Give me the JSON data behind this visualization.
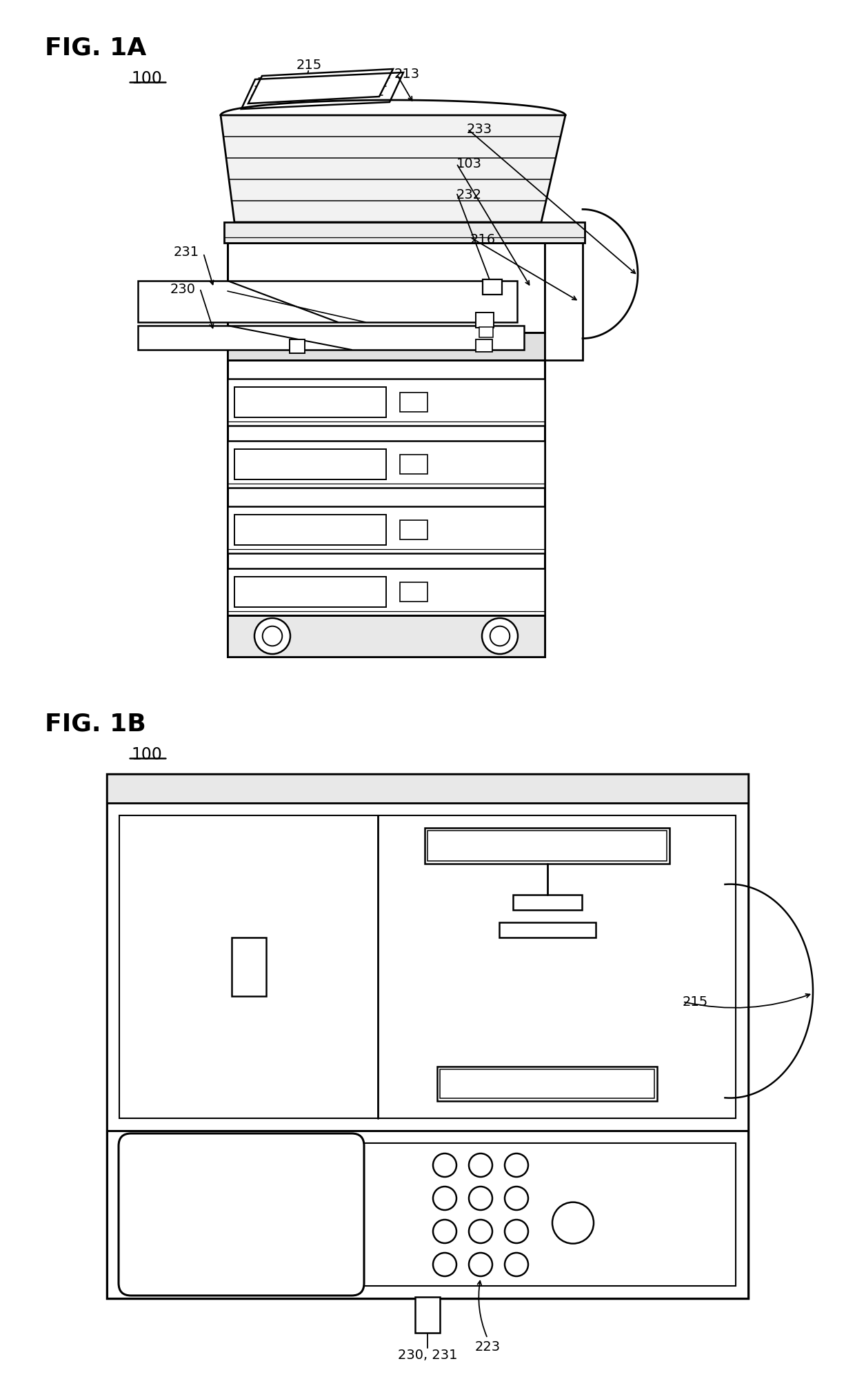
{
  "fig_title_1a": "FIG. 1A",
  "fig_title_1b": "FIG. 1B",
  "label_100": "100",
  "bg_color": "#ffffff",
  "line_color": "#000000",
  "fontsize_title": 26,
  "fontsize_label": 14
}
